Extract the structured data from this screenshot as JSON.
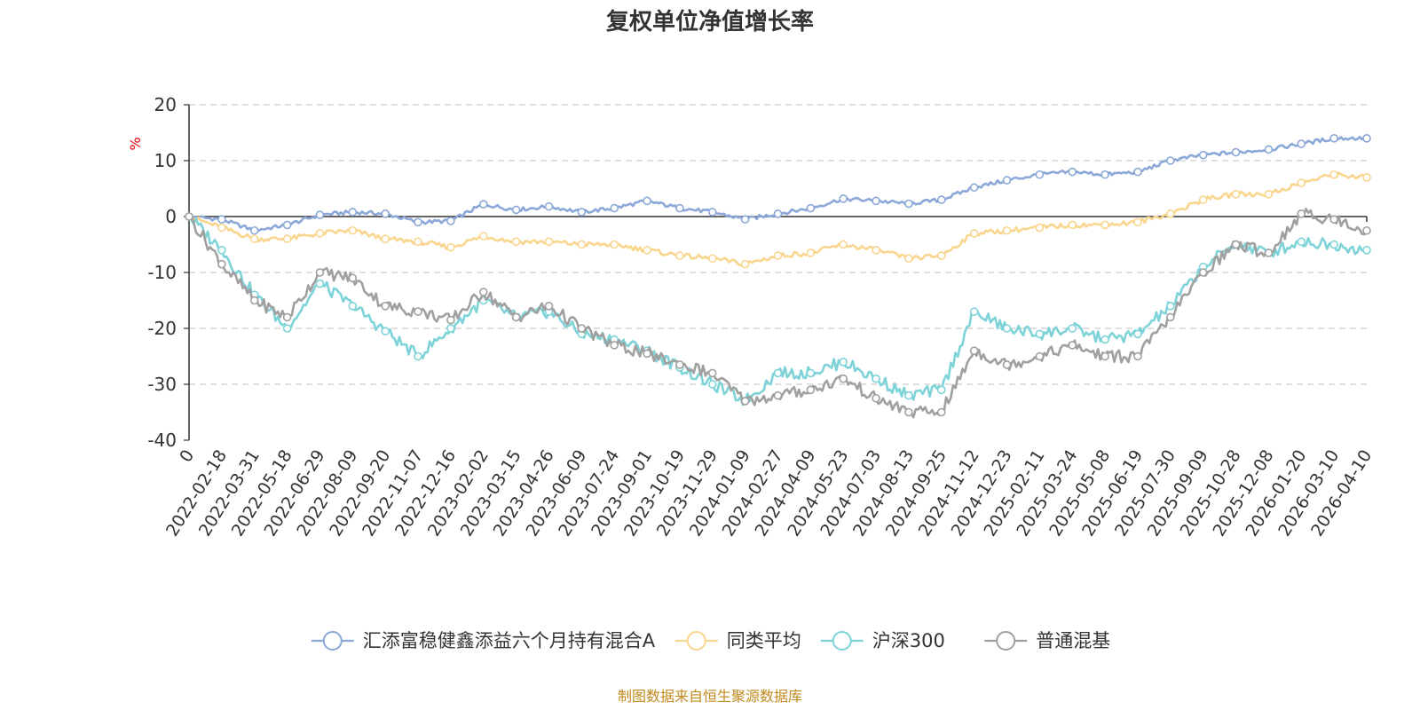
{
  "chart_data": {
    "type": "line",
    "title": "复权单位净值增长率",
    "ylabel": "%",
    "ylim": [
      -40,
      20
    ],
    "yticks": [
      20,
      10,
      0,
      -10,
      -20,
      -30,
      -40
    ],
    "grid": true,
    "legend_position": "bottom",
    "x": [
      "0",
      "2022-02-18",
      "2022-03-31",
      "2022-05-18",
      "2022-06-29",
      "2022-08-09",
      "2022-09-20",
      "2022-11-07",
      "2022-12-16",
      "2023-02-02",
      "2023-03-15",
      "2023-04-26",
      "2023-06-09",
      "2023-07-24",
      "2023-09-01",
      "2023-10-19",
      "2023-11-29",
      "2024-01-09",
      "2024-02-27",
      "2024-04-09",
      "2024-05-23",
      "2024-07-03",
      "2024-08-13",
      "2024-09-25",
      "2024-11-12",
      "2024-12-23",
      "2025-02-11",
      "2025-03-24",
      "2025-05-08",
      "2025-06-19",
      "2025-07-30",
      "2025-09-09",
      "2025-10-28",
      "2025-12-08",
      "2026-01-20",
      "2026-03-10",
      "2026-04-10"
    ],
    "series": [
      {
        "name": "汇添富稳健鑫添益六个月持有混合A",
        "color": "#8ba8d8",
        "values": [
          0,
          -0.5,
          -2.5,
          -1.5,
          0.3,
          0.8,
          0.5,
          -1.0,
          -0.8,
          2.2,
          1.2,
          1.8,
          0.8,
          1.5,
          2.8,
          1.5,
          0.8,
          -0.5,
          0.5,
          1.5,
          3.2,
          2.8,
          2.3,
          3.0,
          5.2,
          6.5,
          7.5,
          8.0,
          7.5,
          8.0,
          10.0,
          11.0,
          11.5,
          12.0,
          13.0,
          14.0,
          14.0
        ]
      },
      {
        "name": "同类平均",
        "color": "#f9d58e",
        "values": [
          0,
          -2.0,
          -4.0,
          -4.0,
          -3.0,
          -2.5,
          -4.0,
          -4.5,
          -5.5,
          -3.5,
          -4.5,
          -4.5,
          -5.0,
          -5.0,
          -6.0,
          -7.0,
          -7.5,
          -8.5,
          -7.0,
          -6.5,
          -5.0,
          -6.0,
          -7.5,
          -7.0,
          -3.0,
          -2.5,
          -2.0,
          -1.5,
          -1.5,
          -1.0,
          0.5,
          3.0,
          4.0,
          4.0,
          6.0,
          7.5,
          7.0
        ]
      },
      {
        "name": "沪深300",
        "color": "#7dd3d8",
        "values": [
          0,
          -6.0,
          -14.0,
          -20.0,
          -12.0,
          -16.0,
          -20.5,
          -25.0,
          -20.0,
          -15.0,
          -18.0,
          -17.0,
          -21.0,
          -22.0,
          -24.0,
          -27.0,
          -30.0,
          -33.0,
          -28.0,
          -28.0,
          -26.0,
          -29.0,
          -32.0,
          -31.0,
          -17.0,
          -20.0,
          -21.0,
          -20.0,
          -22.0,
          -21.0,
          -16.0,
          -9.0,
          -5.0,
          -6.5,
          -4.5,
          -5.0,
          -6.0
        ]
      },
      {
        "name": "普通混基",
        "color": "#a0a0a0",
        "values": [
          0,
          -8.5,
          -15.0,
          -18.0,
          -10.0,
          -11.0,
          -16.0,
          -17.0,
          -18.5,
          -13.5,
          -18.0,
          -16.0,
          -20.0,
          -23.0,
          -24.5,
          -26.5,
          -28.0,
          -33.0,
          -32.0,
          -31.0,
          -29.0,
          -32.5,
          -35.0,
          -35.0,
          -24.0,
          -26.5,
          -25.0,
          -23.0,
          -25.0,
          -25.0,
          -18.0,
          -10.0,
          -5.0,
          -6.5,
          0.5,
          -0.5,
          -2.5
        ]
      }
    ]
  },
  "source_text": "制图数据来自恒生聚源数据库"
}
